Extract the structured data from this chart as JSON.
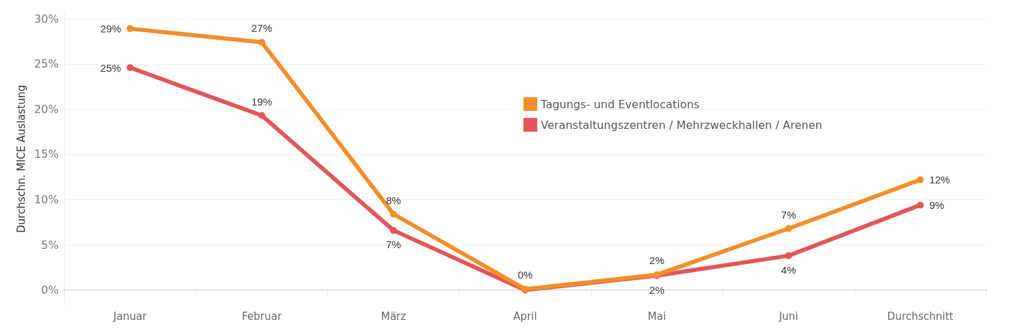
{
  "chart_data": {
    "type": "line",
    "ylabel": "Durchschn. MICE Auslastung",
    "categories": [
      "Januar",
      "Februar",
      "März",
      "April",
      "Mai",
      "Juni",
      "Durchschnitt"
    ],
    "series": [
      {
        "name": "Tagungs- und Eventlocations",
        "color": "#f28e2b",
        "values": [
          28.9,
          27.4,
          8.4,
          0.1,
          1.7,
          6.8,
          12.2
        ],
        "value_labels": [
          "29%",
          "27%",
          "8%",
          "0%",
          "2%",
          "7%",
          "12%"
        ]
      },
      {
        "name": "Veranstaltungszentren / Mehrzweckhallen / Arenen",
        "color": "#e15759",
        "values": [
          24.6,
          19.3,
          6.6,
          0.0,
          1.6,
          3.8,
          9.4
        ],
        "value_labels": [
          "25%",
          "19%",
          "7%",
          null,
          "2%",
          "4%",
          "9%"
        ]
      }
    ],
    "ylim": [
      -1.7,
      30.7
    ],
    "yticks": [
      {
        "value": 0,
        "label": "0%"
      },
      {
        "value": 5,
        "label": "5%"
      },
      {
        "value": 10,
        "label": "10%"
      },
      {
        "value": 15,
        "label": "15%"
      },
      {
        "value": 20,
        "label": "20%"
      },
      {
        "value": 25,
        "label": "25%"
      },
      {
        "value": 30,
        "label": "30%"
      }
    ],
    "ref_lines": [
      {
        "axis": "y",
        "value": 0,
        "label": null,
        "color": "#aaaaaa",
        "line_style": "dotted"
      }
    ],
    "grid": "y",
    "legend": "top",
    "marker": "circle",
    "line_style": "solid"
  }
}
